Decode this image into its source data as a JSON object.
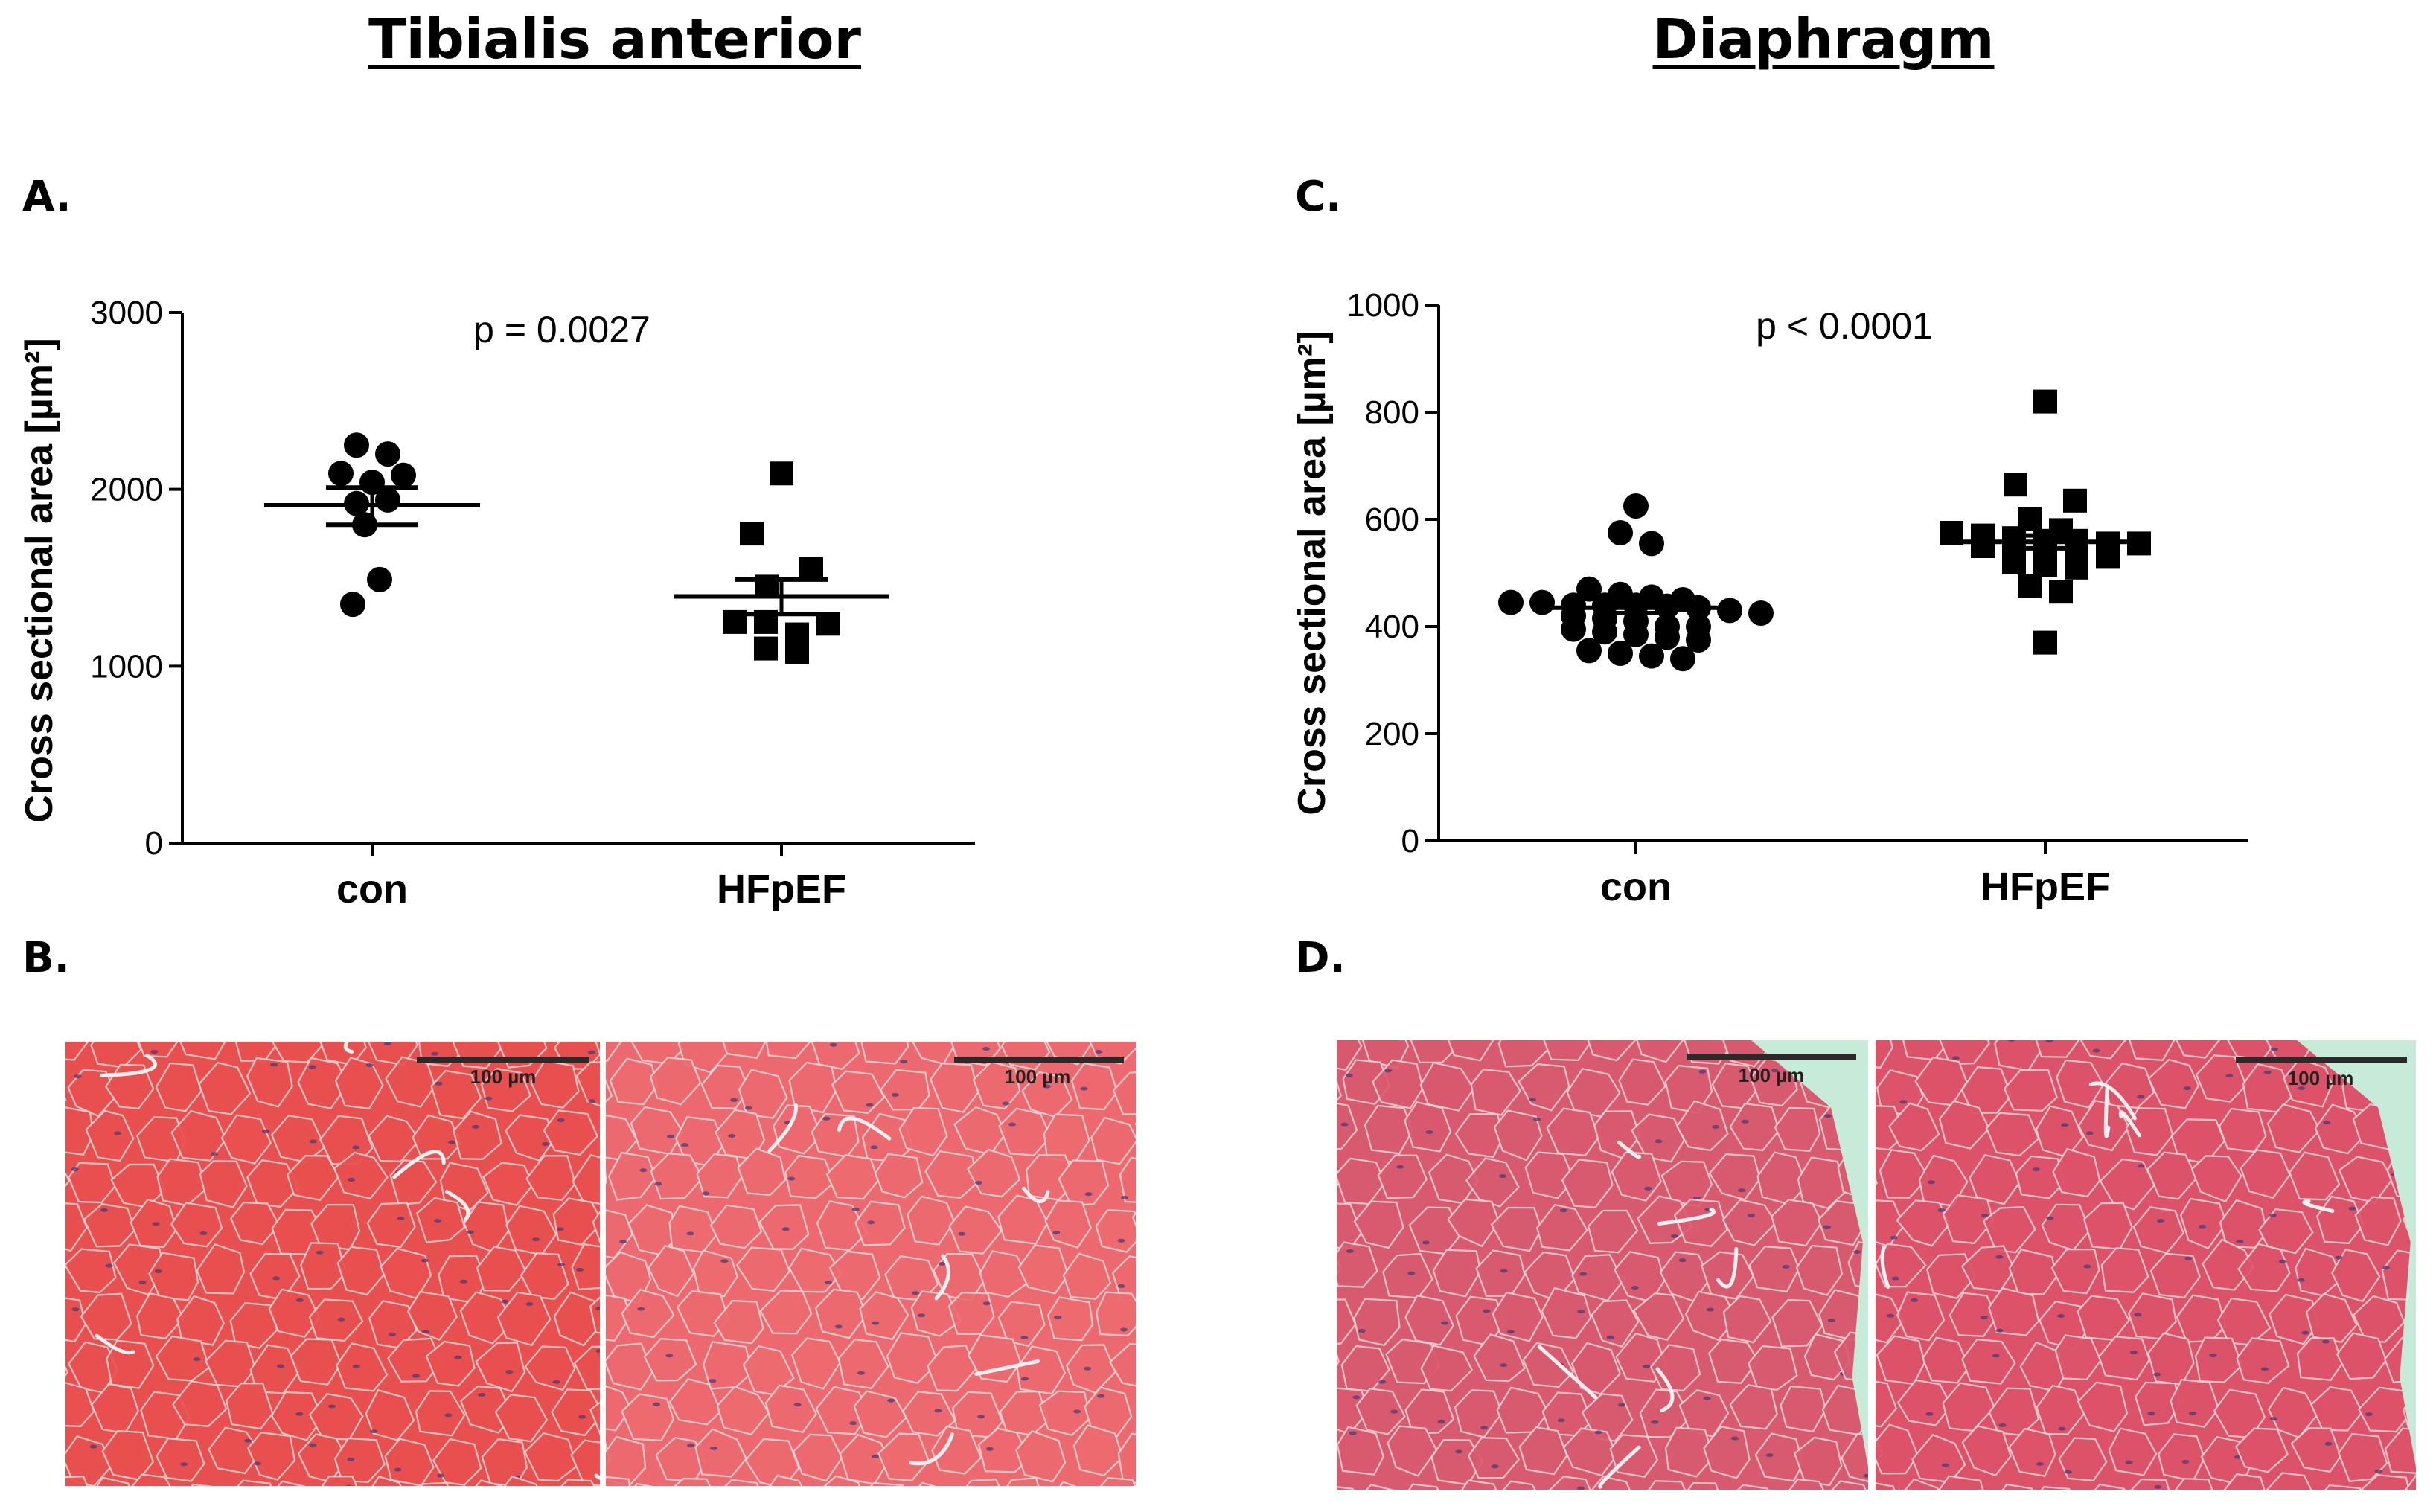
{
  "titles": {
    "left": "Tibialis anterior",
    "right": "Diaphragm"
  },
  "panel_labels": {
    "a": "A.",
    "b": "B.",
    "c": "C.",
    "d": "D."
  },
  "micrographs": {
    "scale_label": "100 µm",
    "colors": {
      "ta_con": "#e8504f",
      "ta_hfpef": "#ec6a6f",
      "dia_con": "#d85a6e",
      "dia_hfpef": "#dc5369",
      "background_green": "#c8ead8",
      "membrane": "#f6e8ea",
      "nuclei": "#4a3b78"
    }
  },
  "chart_data": [
    {
      "type": "scatter",
      "panel": "A.",
      "title": "",
      "ylabel": "Cross sectional area [µm²]",
      "xlabel": "",
      "categories": [
        "con",
        "HFpEF"
      ],
      "ylim": [
        0,
        3000
      ],
      "yticks": [
        0,
        1000,
        2000,
        3000
      ],
      "annotation": "p = 0.0027",
      "series": [
        {
          "category": "con",
          "marker": "circle",
          "values": [
            2250,
            2200,
            2090,
            2040,
            2080,
            1920,
            1940,
            1800,
            1490,
            1350
          ],
          "mean": 1910,
          "sem_upper": 2010,
          "sem_lower": 1800
        },
        {
          "category": "HFpEF",
          "marker": "square",
          "values": [
            2090,
            1750,
            1550,
            1450,
            1250,
            1250,
            1180,
            1100,
            1080,
            1240
          ],
          "mean": 1395,
          "sem_upper": 1490,
          "sem_lower": 1295
        }
      ]
    },
    {
      "type": "scatter",
      "panel": "C.",
      "title": "",
      "ylabel": "Cross sectional area [µm²]",
      "xlabel": "",
      "categories": [
        "con",
        "HFpEF"
      ],
      "ylim": [
        0,
        1000
      ],
      "yticks": [
        0,
        200,
        400,
        600,
        800,
        1000
      ],
      "annotation": "p < 0.0001",
      "series": [
        {
          "category": "con",
          "marker": "circle",
          "values": [
            625,
            575,
            555,
            470,
            460,
            455,
            450,
            445,
            445,
            440,
            440,
            440,
            438,
            435,
            430,
            425,
            420,
            415,
            410,
            400,
            400,
            395,
            390,
            385,
            380,
            375,
            355,
            350,
            345,
            340
          ],
          "mean": 435,
          "sem_upper": 445,
          "sem_lower": 425
        },
        {
          "category": "HFpEF",
          "marker": "square",
          "values": [
            820,
            665,
            635,
            600,
            580,
            575,
            570,
            565,
            560,
            560,
            555,
            555,
            550,
            550,
            540,
            535,
            530,
            520,
            515,
            510,
            475,
            465,
            370
          ],
          "mean": 558,
          "sem_upper": 570,
          "sem_lower": 546
        }
      ]
    }
  ]
}
